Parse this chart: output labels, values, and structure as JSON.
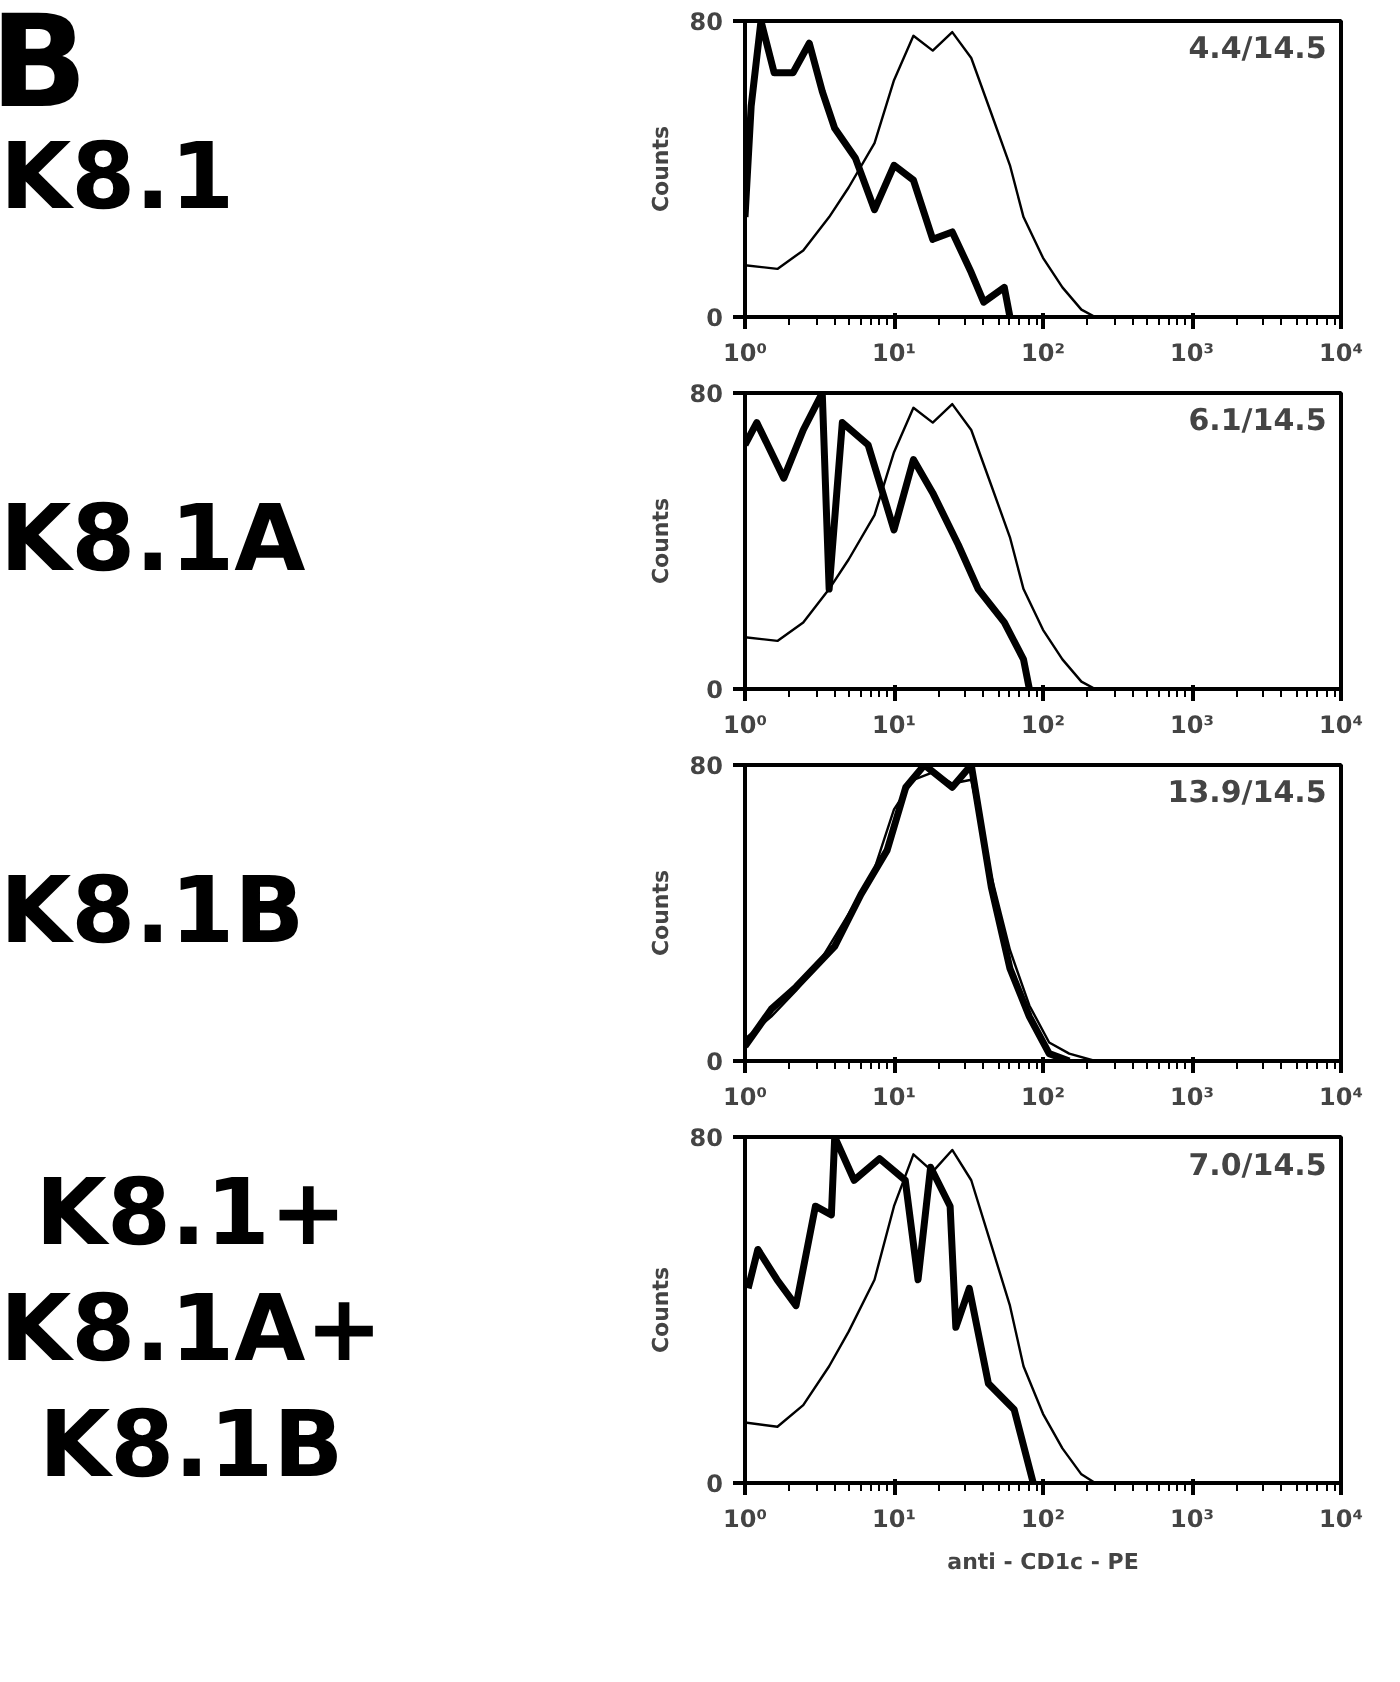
{
  "chart_data": [
    {
      "type": "line",
      "title": "K8.1",
      "annotations": [
        "B",
        "4.4/14.5"
      ],
      "ylabel": "Counts",
      "log": "x",
      "xlim": [
        1,
        10000
      ],
      "ylim": [
        0,
        80
      ],
      "xticks": [
        {
          "value": 1,
          "label": "10⁰"
        },
        {
          "value": 10,
          "label": "10¹"
        },
        {
          "value": 100,
          "label": "10²"
        },
        {
          "value": 1000,
          "label": "10³"
        },
        {
          "value": 10000,
          "label": "10⁴"
        }
      ],
      "yticks": [
        0,
        80
      ],
      "grid": false,
      "series": [
        {
          "color": "#000000",
          "x": [
            1.0,
            1.65,
            2.46,
            3.67,
            4.96,
            7.4,
            10,
            13.5,
            18.2,
            24.6,
            33,
            45,
            60,
            74,
            100,
            135,
            181,
            224,
            10000
          ],
          "values": [
            14,
            13,
            18,
            27,
            35,
            47,
            64,
            76,
            72,
            77,
            70,
            55,
            41,
            27,
            16,
            8,
            2,
            0,
            0
          ]
        },
        {
          "color": "#000000",
          "x": [
            1.0,
            1.1,
            1.28,
            1.57,
            2.1,
            2.7,
            3.3,
            4.0,
            5.5,
            7.4,
            10,
            13.5,
            18.2,
            24.6,
            33,
            40,
            55,
            60
          ],
          "values": [
            27,
            57,
            80,
            66,
            66,
            74,
            61,
            51,
            43,
            29,
            41,
            37,
            21,
            23,
            12,
            4,
            8,
            0
          ]
        }
      ]
    },
    {
      "type": "line",
      "title": "K8.1A",
      "annotations": [
        "6.1/14.5"
      ],
      "ylabel": "Counts",
      "log": "x",
      "xlim": [
        1,
        10000
      ],
      "ylim": [
        0,
        80
      ],
      "xticks": [
        {
          "value": 1,
          "label": "10⁰"
        },
        {
          "value": 10,
          "label": "10¹"
        },
        {
          "value": 100,
          "label": "10²"
        },
        {
          "value": 1000,
          "label": "10³"
        },
        {
          "value": 10000,
          "label": "10⁴"
        }
      ],
      "yticks": [
        0,
        80
      ],
      "grid": false,
      "series": [
        {
          "color": "#000000",
          "x": [
            1.0,
            1.65,
            2.46,
            3.67,
            4.96,
            7.4,
            10,
            13.5,
            18.2,
            24.6,
            33,
            45,
            60,
            74,
            100,
            135,
            181,
            224,
            10000
          ],
          "values": [
            14,
            13,
            18,
            27,
            35,
            47,
            64,
            76,
            72,
            77,
            70,
            55,
            41,
            27,
            16,
            8,
            2,
            0,
            0
          ]
        },
        {
          "color": "#000000",
          "x": [
            1.0,
            1.2,
            1.82,
            2.46,
            3.3,
            3.67,
            4.5,
            6.7,
            10,
            13.5,
            18.2,
            27,
            36.7,
            55,
            74,
            81
          ],
          "values": [
            66,
            72,
            57,
            70,
            80,
            27,
            72,
            66,
            43,
            62,
            53,
            39,
            27,
            18,
            8,
            0
          ]
        }
      ]
    },
    {
      "type": "line",
      "title": "K8.1B",
      "annotations": [
        "13.9/14.5"
      ],
      "ylabel": "Counts",
      "log": "x",
      "xlim": [
        1,
        10000
      ],
      "ylim": [
        0,
        80
      ],
      "xticks": [
        {
          "value": 1,
          "label": "10⁰"
        },
        {
          "value": 10,
          "label": "10¹"
        },
        {
          "value": 100,
          "label": "10²"
        },
        {
          "value": 1000,
          "label": "10³"
        },
        {
          "value": 10000,
          "label": "10⁴"
        }
      ],
      "yticks": [
        0,
        80
      ],
      "grid": false,
      "series": [
        {
          "color": "#000000",
          "x": [
            1.0,
            1.5,
            2.2,
            3.3,
            5.0,
            7.4,
            10,
            13.5,
            18.2,
            24.6,
            33,
            45,
            60,
            81,
            110,
            150,
            224,
            10000
          ],
          "values": [
            6,
            12,
            19,
            28,
            40,
            52,
            68,
            76,
            78,
            75,
            76,
            50,
            30,
            15,
            5,
            2,
            0,
            0
          ]
        },
        {
          "color": "#000000",
          "x": [
            1.0,
            1.5,
            2.2,
            4.0,
            6.0,
            9.0,
            12,
            16,
            24.6,
            33,
            45,
            60,
            81,
            110,
            150
          ],
          "values": [
            4,
            14,
            20,
            31,
            45,
            57,
            74,
            80,
            74,
            80,
            47,
            25,
            12,
            2,
            0
          ]
        }
      ]
    },
    {
      "type": "line",
      "title": "K8.1+\nK8.1A+\nK8.1B",
      "annotations": [
        "7.0/14.5"
      ],
      "xlabel": "anti - CD1c - PE",
      "ylabel": "Counts",
      "log": "x",
      "xlim": [
        1,
        10000
      ],
      "ylim": [
        0,
        80
      ],
      "xticks": [
        {
          "value": 1,
          "label": "10⁰"
        },
        {
          "value": 10,
          "label": "10¹"
        },
        {
          "value": 100,
          "label": "10²"
        },
        {
          "value": 1000,
          "label": "10³"
        },
        {
          "value": 10000,
          "label": "10⁴"
        }
      ],
      "yticks": [
        0,
        80
      ],
      "grid": false,
      "series": [
        {
          "color": "#000000",
          "x": [
            1.0,
            1.65,
            2.46,
            3.67,
            4.96,
            7.4,
            10,
            13.5,
            18.2,
            24.6,
            33,
            45,
            60,
            74,
            100,
            135,
            181,
            224,
            10000
          ],
          "values": [
            14,
            13,
            18,
            27,
            35,
            47,
            64,
            76,
            72,
            77,
            70,
            55,
            41,
            27,
            16,
            8,
            2,
            0,
            0
          ]
        },
        {
          "color": "#000000",
          "x": [
            1.05,
            1.22,
            1.64,
            2.2,
            2.97,
            3.8,
            4.0,
            5.4,
            8.0,
            11.9,
            14.5,
            17.6,
            23.8,
            26,
            32,
            43,
            64,
            86
          ],
          "values": [
            45,
            54,
            47,
            41,
            64,
            62,
            80,
            70,
            75,
            70,
            47,
            73,
            64,
            36,
            45,
            23,
            17,
            0
          ]
        }
      ]
    }
  ]
}
